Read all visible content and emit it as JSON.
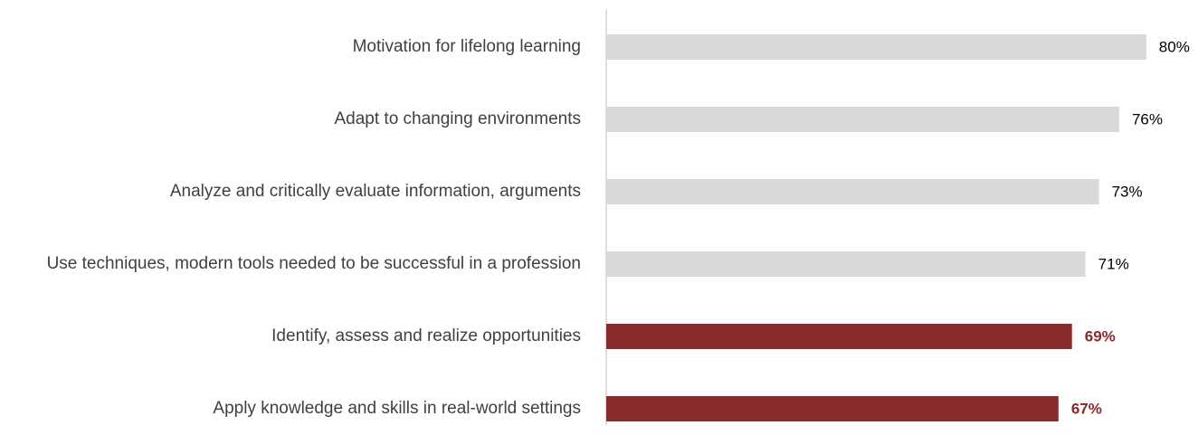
{
  "chart_data": {
    "type": "hbar",
    "categories": [
      "Motivation for lifelong learning",
      "Adapt to changing environments",
      "Analyze and critically evaluate information, arguments",
      "Use techniques, modern tools needed to be successful in a profession",
      "Identify, assess and realize opportunities",
      "Apply knowledge and skills in real-world settings"
    ],
    "values": [
      80,
      76,
      73,
      71,
      69,
      67
    ],
    "value_labels": [
      "80%",
      "76%",
      "73%",
      "71%",
      "69%",
      "67%"
    ],
    "colors": [
      "#d9d9d9",
      "#d9d9d9",
      "#d9d9d9",
      "#d9d9d9",
      "#8b2a2d",
      "#8b2a2d"
    ],
    "highlight": [
      false,
      false,
      false,
      false,
      true,
      true
    ]
  }
}
